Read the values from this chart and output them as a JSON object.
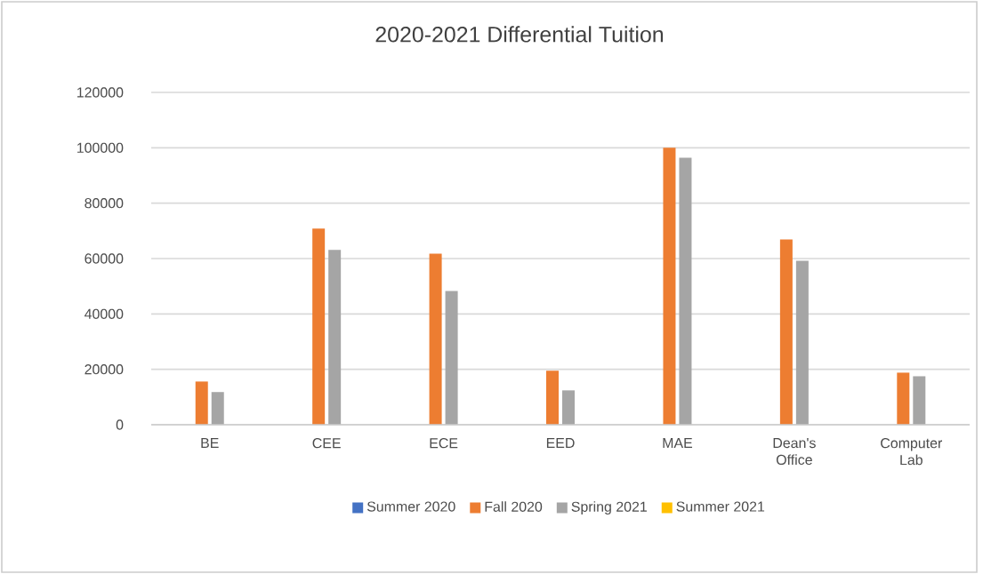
{
  "chart_data": {
    "type": "bar",
    "title": "2020-2021 Differential Tuition",
    "categories": [
      "BE",
      "CEE",
      "ECE",
      "EED",
      "MAE",
      "Dean's Office",
      "Computer Lab"
    ],
    "series": [
      {
        "name": "Summer 2020",
        "color": "#4472c4",
        "values": [
          null,
          null,
          null,
          null,
          null,
          null,
          null
        ]
      },
      {
        "name": "Fall 2020",
        "color": "#ed7d31",
        "values": [
          15600,
          70800,
          61800,
          19500,
          100000,
          66900,
          18800
        ]
      },
      {
        "name": "Spring 2021",
        "color": "#a5a5a5",
        "values": [
          11800,
          63100,
          48300,
          12400,
          96400,
          59200,
          17500
        ]
      },
      {
        "name": "Summer 2021",
        "color": "#ffc000",
        "values": [
          null,
          null,
          null,
          null,
          null,
          null,
          null
        ]
      }
    ],
    "ylim": [
      0,
      120000
    ],
    "yticks": [
      0,
      20000,
      40000,
      60000,
      80000,
      100000,
      120000
    ],
    "grid": "y",
    "legend": "bottom"
  }
}
